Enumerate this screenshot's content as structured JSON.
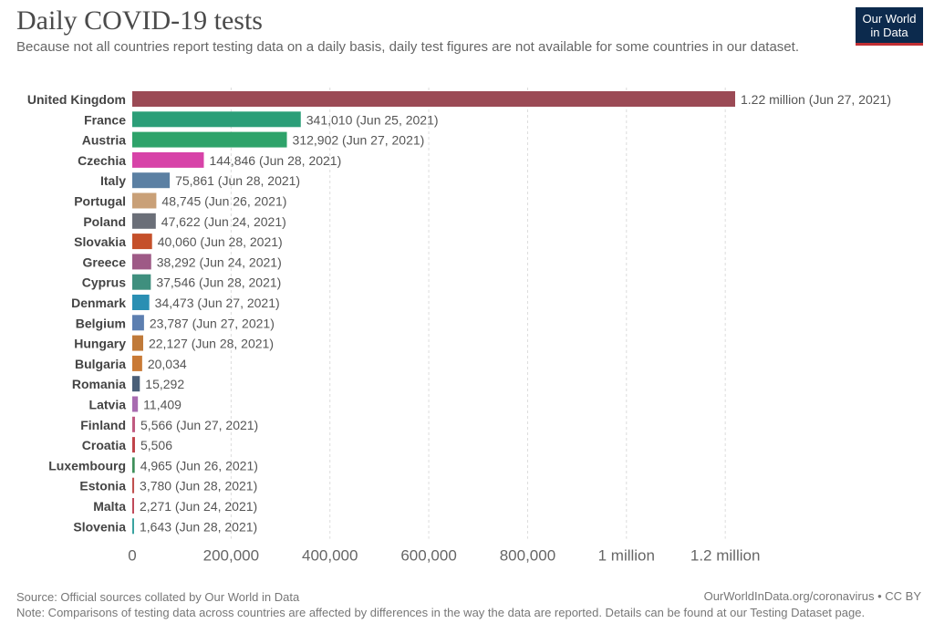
{
  "title": "Daily COVID-19 tests",
  "subtitle": "Because not all countries report testing data on a daily basis, daily test figures are not available for some countries in our dataset.",
  "logo": {
    "line1": "Our World",
    "line2": "in Data"
  },
  "footer": {
    "source": "Source: Official sources collated by Our World in Data",
    "site": "OurWorldInData.org/coronavirus • CC BY",
    "note": "Note: Comparisons of testing data across countries are affected by differences in the way the data are reported. Details can be found at our Testing Dataset page."
  },
  "chart_data": {
    "type": "bar",
    "orientation": "horizontal",
    "xlim": [
      0,
      1220000
    ],
    "grid": true,
    "ticks": [
      {
        "value": 0,
        "label": "0"
      },
      {
        "value": 200000,
        "label": "200,000"
      },
      {
        "value": 400000,
        "label": "400,000"
      },
      {
        "value": 600000,
        "label": "600,000"
      },
      {
        "value": 800000,
        "label": "800,000"
      },
      {
        "value": 1000000,
        "label": "1 million"
      },
      {
        "value": 1200000,
        "label": "1.2 million"
      }
    ],
    "bars": [
      {
        "country": "United Kingdom",
        "value": 1220000,
        "label": "1.22 million (Jun 27, 2021)",
        "color": "#9b4a55"
      },
      {
        "country": "France",
        "value": 341010,
        "label": "341,010 (Jun 25, 2021)",
        "color": "#2b9e78"
      },
      {
        "country": "Austria",
        "value": 312902,
        "label": "312,902 (Jun 27, 2021)",
        "color": "#2ea36a"
      },
      {
        "country": "Czechia",
        "value": 144846,
        "label": "144,846 (Jun 28, 2021)",
        "color": "#d743a8"
      },
      {
        "country": "Italy",
        "value": 75861,
        "label": "75,861 (Jun 28, 2021)",
        "color": "#5b80a3"
      },
      {
        "country": "Portugal",
        "value": 48745,
        "label": "48,745 (Jun 26, 2021)",
        "color": "#c9a077"
      },
      {
        "country": "Poland",
        "value": 47622,
        "label": "47,622 (Jun 24, 2021)",
        "color": "#6b6f78"
      },
      {
        "country": "Slovakia",
        "value": 40060,
        "label": "40,060 (Jun 28, 2021)",
        "color": "#c5502a"
      },
      {
        "country": "Greece",
        "value": 38292,
        "label": "38,292 (Jun 24, 2021)",
        "color": "#9e5a86"
      },
      {
        "country": "Cyprus",
        "value": 37546,
        "label": "37,546 (Jun 28, 2021)",
        "color": "#3f8f7e"
      },
      {
        "country": "Denmark",
        "value": 34473,
        "label": "34,473 (Jun 27, 2021)",
        "color": "#2a8fb3"
      },
      {
        "country": "Belgium",
        "value": 23787,
        "label": "23,787 (Jun 27, 2021)",
        "color": "#5d7fb0"
      },
      {
        "country": "Hungary",
        "value": 22127,
        "label": "22,127 (Jun 28, 2021)",
        "color": "#c07a3a"
      },
      {
        "country": "Bulgaria",
        "value": 20034,
        "label": "20,034",
        "color": "#c97a36"
      },
      {
        "country": "Romania",
        "value": 15292,
        "label": "15,292",
        "color": "#4a5f78"
      },
      {
        "country": "Latvia",
        "value": 11409,
        "label": "11,409",
        "color": "#a86bb0"
      },
      {
        "country": "Finland",
        "value": 5566,
        "label": "5,566 (Jun 27, 2021)",
        "color": "#c05a80"
      },
      {
        "country": "Croatia",
        "value": 5506,
        "label": "5,506",
        "color": "#c0444a"
      },
      {
        "country": "Luxembourg",
        "value": 4965,
        "label": "4,965 (Jun 26, 2021)",
        "color": "#3e8f5a"
      },
      {
        "country": "Estonia",
        "value": 3780,
        "label": "3,780 (Jun 28, 2021)",
        "color": "#c0504e"
      },
      {
        "country": "Malta",
        "value": 2271,
        "label": "2,271 (Jun 24, 2021)",
        "color": "#c04a5a"
      },
      {
        "country": "Slovenia",
        "value": 1643,
        "label": "1,643 (Jun 28, 2021)",
        "color": "#3aa3a0"
      }
    ]
  }
}
